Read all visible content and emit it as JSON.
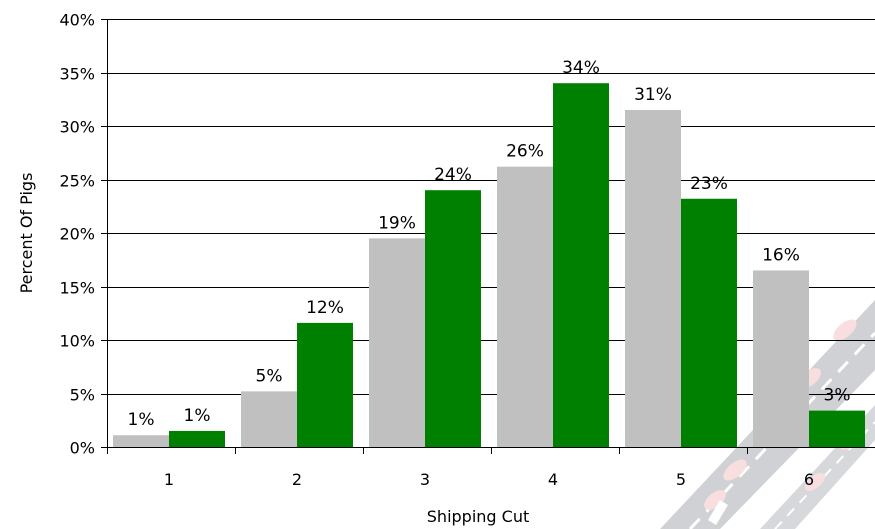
{
  "chart_data": {
    "type": "bar",
    "title": "",
    "xlabel": "Shipping Cut",
    "ylabel": "Percent Of Pigs",
    "categories": [
      "1",
      "2",
      "3",
      "4",
      "5",
      "6"
    ],
    "series": [
      {
        "values": [
          1.1,
          5.2,
          19.5,
          26.2,
          31.5,
          16.5
        ],
        "color": "#c0c0c0",
        "labels": [
          "1%",
          "5%",
          "19%",
          "26%",
          "31%",
          "16%"
        ]
      },
      {
        "values": [
          1.5,
          11.6,
          24.0,
          34.0,
          23.2,
          3.4
        ],
        "color": "#008000",
        "labels": [
          "1%",
          "12%",
          "24%",
          "34%",
          "23%",
          "3%"
        ]
      }
    ],
    "ylim": [
      0,
      40
    ],
    "yticks": [
      0,
      5,
      10,
      15,
      20,
      25,
      30,
      35,
      40
    ],
    "ytick_labels": [
      "0%",
      "5%",
      "10%",
      "15%",
      "20%",
      "25%",
      "30%",
      "35%",
      "40%"
    ],
    "grid": true,
    "legend": "none"
  },
  "colors": {
    "gridline": "#000000",
    "background": "#ffffff",
    "watermark_road": "#9aa0a6",
    "watermark_pig": "#f0b8b8"
  },
  "watermark": {
    "icon": "pigs-on-road-watermark"
  }
}
